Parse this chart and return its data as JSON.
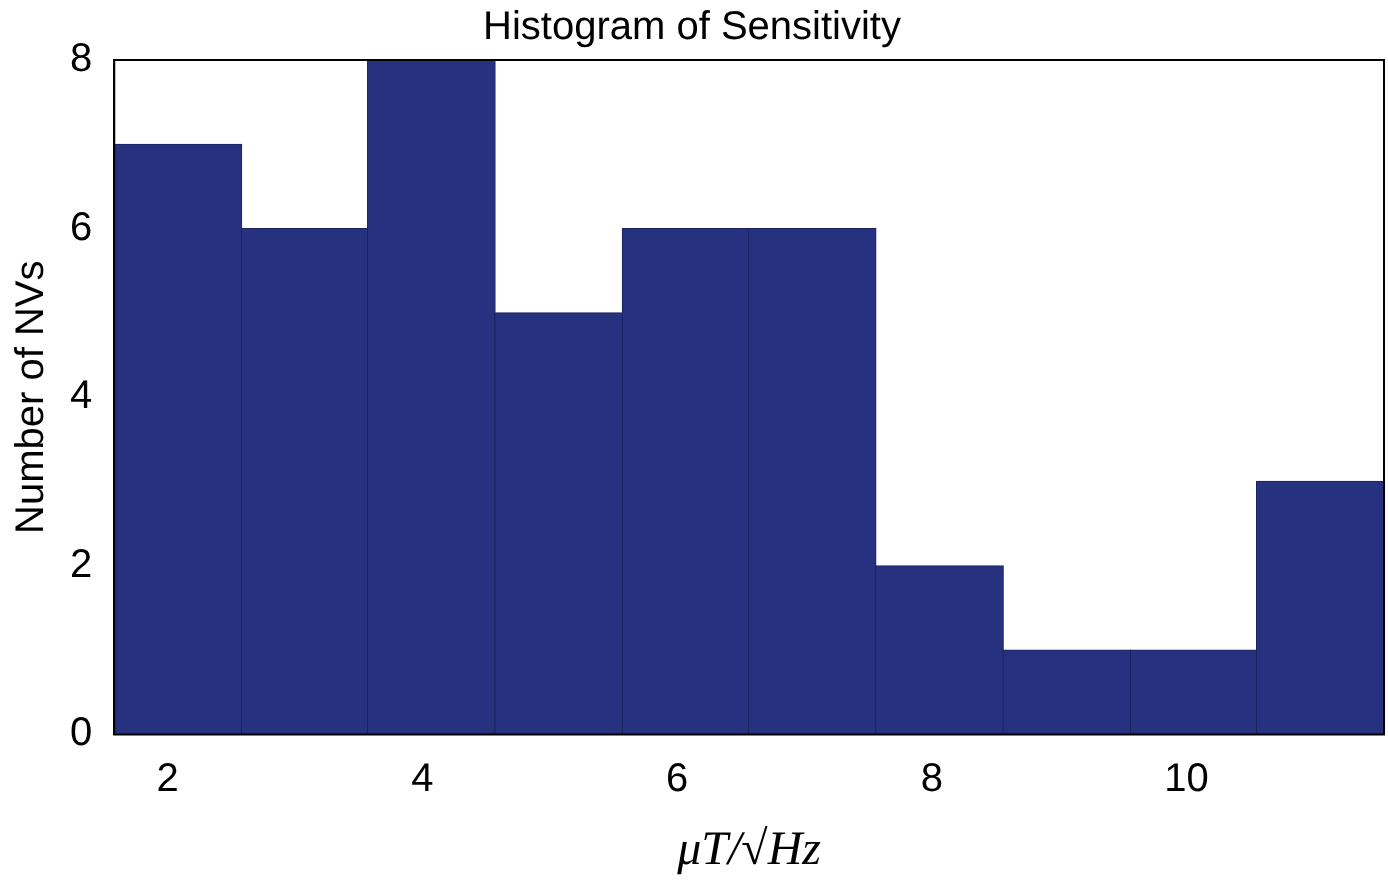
{
  "chart_data": {
    "type": "histogram",
    "title": "Histogram of Sensitivity",
    "xlabel": "μT/√Hz",
    "ylabel": "Number of NVs",
    "bins": [
      1.58,
      2.58,
      3.57,
      4.57,
      5.57,
      6.56,
      7.56,
      8.56,
      9.56,
      10.55,
      11.55
    ],
    "values": [
      7,
      6,
      8,
      5,
      6,
      6,
      2,
      1,
      1,
      3
    ],
    "color": "#26327f",
    "xlim": [
      1.58,
      11.55
    ],
    "xticks": [
      2,
      4,
      6,
      8,
      10
    ],
    "ylim": [
      0,
      8
    ],
    "yticks": [
      0,
      2,
      4,
      6,
      8
    ]
  }
}
